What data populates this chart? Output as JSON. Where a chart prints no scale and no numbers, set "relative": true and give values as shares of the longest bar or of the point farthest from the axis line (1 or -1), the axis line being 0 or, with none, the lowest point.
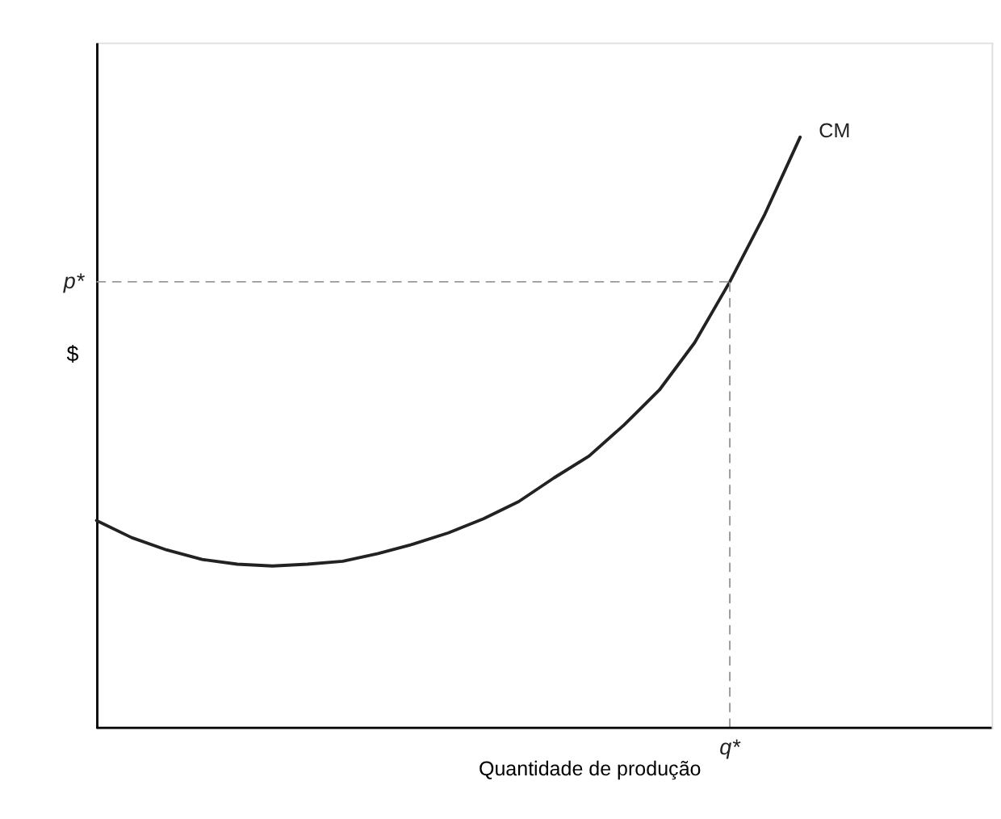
{
  "chart_data": {
    "type": "line",
    "relative": true,
    "xlabel": "Quantidade de produção",
    "ylabel": "$",
    "grid": false,
    "marker": "none",
    "line_style": "solid",
    "tick_labels": false,
    "categories": [
      null,
      null,
      null,
      null,
      null,
      null,
      null,
      null,
      null,
      null,
      null,
      null,
      null,
      null,
      null,
      null,
      null,
      null,
      null,
      null,
      null
    ],
    "series": [
      {
        "name": "CM",
        "color": "#222222",
        "values": [
          0.351,
          0.322,
          0.301,
          0.285,
          0.277,
          0.274,
          0.277,
          0.282,
          0.295,
          0.311,
          0.33,
          0.354,
          0.383,
          0.423,
          0.46,
          0.513,
          0.572,
          0.652,
          0.755,
          0.87,
          1.0
        ]
      }
    ],
    "ref_lines": [
      {
        "axis": "y",
        "value": 0.755,
        "label": "p*",
        "color": "#999999",
        "line_style": "dashed"
      },
      {
        "axis": "x",
        "value": "q*",
        "color": "#999999",
        "line_style": "dashed"
      }
    ]
  }
}
